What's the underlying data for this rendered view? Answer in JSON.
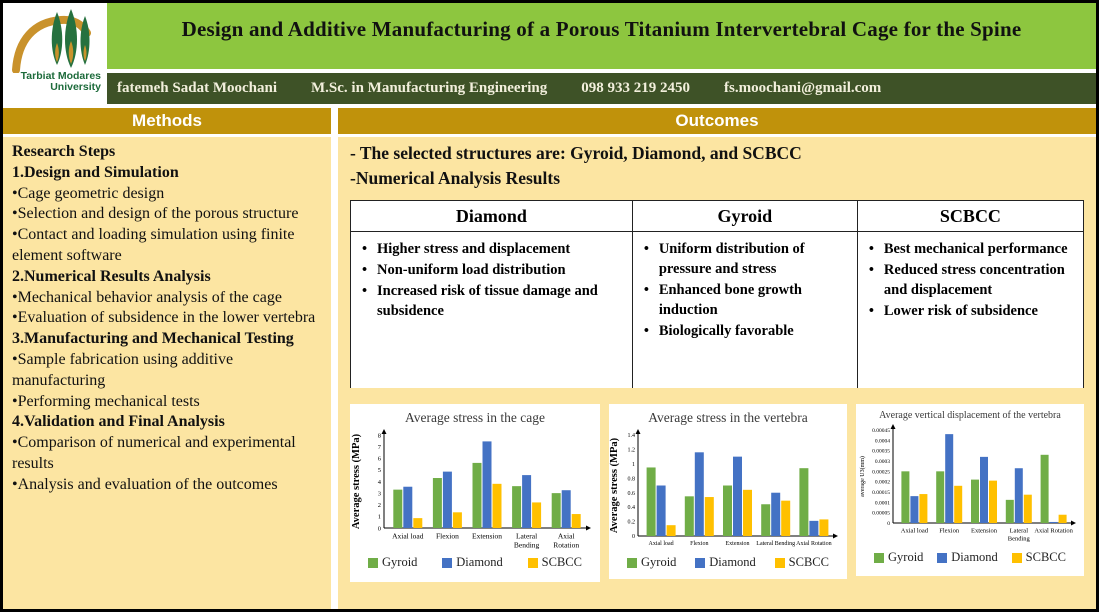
{
  "header": {
    "title": "Design and Additive Manufacturing of a Porous Titanium Intervertebral Cage for the Spine",
    "university": {
      "line1": "Tarbiat Modares",
      "line2": "University"
    },
    "author": {
      "name": "fatemeh Sadat Moochani",
      "degree": "M.Sc. in Manufacturing Engineering",
      "phone": "098 933 219 2450",
      "email": "fs.moochani@gmail.com"
    }
  },
  "methods": {
    "header": "Methods",
    "lines": [
      "Research Steps",
      "1.Design and Simulation",
      "•Cage geometric design",
      "•Selection and design of the porous structure",
      "•Contact and loading simulation using finite element software",
      "2.Numerical Results Analysis",
      "•Mechanical behavior analysis of the cage",
      "•Evaluation of subsidence in the lower vertebra",
      "3.Manufacturing and Mechanical Testing",
      "•Sample fabrication using additive manufacturing",
      "•Performing mechanical tests",
      "4.Validation and Final Analysis",
      "•Comparison of numerical and experimental results",
      "•Analysis and evaluation of the outcomes"
    ]
  },
  "outcomes": {
    "header": "Outcomes",
    "intro": [
      "- The selected structures are: Gyroid, Diamond, and SCBCC",
      "-Numerical Analysis Results"
    ],
    "table": {
      "columns": [
        {
          "title": "Diamond",
          "bullets": [
            "Higher stress and displacement",
            "Non-uniform load distribution",
            "Increased risk of tissue damage and subsidence"
          ]
        },
        {
          "title": "Gyroid",
          "bullets": [
            "Uniform distribution of pressure and stress",
            "Enhanced bone growth induction",
            "Biologically favorable"
          ]
        },
        {
          "title": "SCBCC",
          "bullets": [
            "Best mechanical performance",
            "Reduced stress concentration and displacement",
            "Lower risk of subsidence"
          ]
        }
      ]
    }
  },
  "chart_data": [
    {
      "type": "bar",
      "title": "Average stress in the cage",
      "ylabel": "Average stress (MPa)",
      "xlabel": "",
      "categories": [
        "Axial load",
        "Flexion",
        "Extension",
        "Lateral\nBending",
        "Axial\nRotation"
      ],
      "ylim": [
        0,
        8
      ],
      "ytick_step": 1,
      "grid": false,
      "legend_position": "bottom",
      "series": [
        {
          "name": "Gyroid",
          "color": "#70AD47",
          "values": [
            3.3,
            4.3,
            5.6,
            3.6,
            3.0
          ]
        },
        {
          "name": "Diamond",
          "color": "#4472C4",
          "values": [
            3.55,
            4.85,
            7.45,
            4.55,
            3.25
          ]
        },
        {
          "name": "SCBCC",
          "color": "#FFC000",
          "values": [
            0.85,
            1.35,
            3.8,
            2.2,
            1.2
          ]
        }
      ]
    },
    {
      "type": "bar",
      "title": "Average stress in the vertebra",
      "ylabel": "Average stress (MPa)",
      "xlabel": "",
      "categories": [
        "Axial load",
        "Flexion",
        "Extension",
        "Lateral Bending",
        "Axial Rotation"
      ],
      "ylim": [
        0,
        1.4
      ],
      "ytick_step": 0.2,
      "grid": false,
      "legend_position": "bottom",
      "series": [
        {
          "name": "Gyroid",
          "color": "#70AD47",
          "values": [
            0.95,
            0.55,
            0.7,
            0.44,
            0.94
          ]
        },
        {
          "name": "Diamond",
          "color": "#4472C4",
          "values": [
            0.7,
            1.16,
            1.1,
            0.6,
            0.21
          ]
        },
        {
          "name": "SCBCC",
          "color": "#FFC000",
          "values": [
            0.15,
            0.54,
            0.64,
            0.49,
            0.23
          ]
        }
      ]
    },
    {
      "type": "bar",
      "title": "Average vertical displacement of the vertebra",
      "ylabel": "average U3(mm)",
      "xlabel": "",
      "categories": [
        "Axial load",
        "Flexion",
        "Extension",
        "Lateral\nBending",
        "Axial Rotation"
      ],
      "ylim": [
        0,
        0.00045
      ],
      "ytick_step": 5e-05,
      "grid": false,
      "legend_position": "bottom",
      "series": [
        {
          "name": "Gyroid",
          "color": "#70AD47",
          "values": [
            0.00025,
            0.00025,
            0.00021,
            0.000112,
            0.00033
          ]
        },
        {
          "name": "Diamond",
          "color": "#4472C4",
          "values": [
            0.00013,
            0.00043,
            0.00032,
            0.000265,
            5e-06
          ]
        },
        {
          "name": "SCBCC",
          "color": "#FFC000",
          "values": [
            0.00014,
            0.00018,
            0.000205,
            0.000137,
            4e-05
          ]
        }
      ]
    }
  ],
  "colors": {
    "title_bg": "#8DC63F",
    "author_bar_bg": "#3E5227",
    "section_header_bg": "#C0920B",
    "body_bg": "#FCE5A2",
    "series_gyroid": "#70AD47",
    "series_diamond": "#4472C4",
    "series_scbcc": "#FFC000"
  }
}
